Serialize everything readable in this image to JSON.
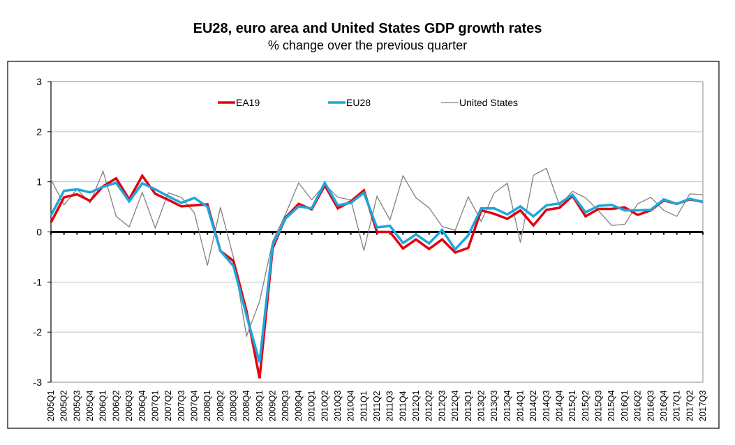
{
  "chart_data": {
    "type": "line",
    "title": "EU28, euro area and United States GDP growth rates",
    "subtitle": "% change over the previous quarter",
    "xlabel": "",
    "ylabel": "",
    "ylim": [
      -3,
      3
    ],
    "yticks": [
      3,
      2,
      1,
      0,
      -1,
      -2,
      -3
    ],
    "grid": true,
    "legend_position": "top",
    "x": [
      "2005Q1",
      "2005Q2",
      "2005Q3",
      "2005Q4",
      "2006Q1",
      "2006Q2",
      "2006Q3",
      "2006Q4",
      "2007Q1",
      "2007Q2",
      "2007Q3",
      "2007Q4",
      "2008Q1",
      "2008Q2",
      "2008Q3",
      "2008Q4",
      "2009Q1",
      "2009Q2",
      "2009Q3",
      "2009Q4",
      "2010Q1",
      "2010Q2",
      "2010Q3",
      "2010Q4",
      "2011Q1",
      "2011Q2",
      "2011Q3",
      "2011Q4",
      "2012Q1",
      "2012Q2",
      "2012Q3",
      "2012Q4",
      "2013Q1",
      "2013Q2",
      "2013Q3",
      "2013Q4",
      "2014Q1",
      "2014Q2",
      "2014Q3",
      "2014Q4",
      "2015Q1",
      "2015Q2",
      "2015Q3",
      "2015Q4",
      "2016Q1",
      "2016Q2",
      "2016Q3",
      "2016Q4",
      "2017Q1",
      "2017Q2",
      "2017Q3"
    ],
    "series": [
      {
        "name": "EA19",
        "color": "#e3000f",
        "values": [
          0.19,
          0.69,
          0.75,
          0.62,
          0.91,
          1.07,
          0.65,
          1.12,
          0.76,
          0.64,
          0.51,
          0.53,
          0.55,
          -0.38,
          -0.58,
          -1.58,
          -2.92,
          -0.33,
          0.29,
          0.56,
          0.45,
          0.93,
          0.47,
          0.61,
          0.83,
          0.0,
          0.0,
          -0.33,
          -0.15,
          -0.34,
          -0.15,
          -0.41,
          -0.32,
          0.43,
          0.36,
          0.26,
          0.43,
          0.13,
          0.44,
          0.48,
          0.72,
          0.31,
          0.46,
          0.46,
          0.49,
          0.34,
          0.43,
          0.63,
          0.56,
          0.65,
          0.6
        ]
      },
      {
        "name": "EU28",
        "color": "#1ea6dc",
        "values": [
          0.33,
          0.82,
          0.85,
          0.79,
          0.9,
          0.98,
          0.61,
          0.97,
          0.85,
          0.71,
          0.58,
          0.68,
          0.5,
          -0.38,
          -0.68,
          -1.67,
          -2.6,
          -0.26,
          0.27,
          0.51,
          0.47,
          0.98,
          0.53,
          0.58,
          0.78,
          0.09,
          0.12,
          -0.22,
          -0.05,
          -0.23,
          0.04,
          -0.35,
          -0.07,
          0.47,
          0.47,
          0.35,
          0.51,
          0.31,
          0.53,
          0.57,
          0.74,
          0.39,
          0.52,
          0.54,
          0.43,
          0.43,
          0.44,
          0.65,
          0.56,
          0.66,
          0.6
        ]
      },
      {
        "name": "United States",
        "color": "#808080",
        "values": [
          1.05,
          0.54,
          0.85,
          0.58,
          1.21,
          0.31,
          0.1,
          0.79,
          0.08,
          0.78,
          0.69,
          0.38,
          -0.67,
          0.49,
          -0.51,
          -2.08,
          -1.39,
          -0.19,
          0.36,
          0.98,
          0.64,
          0.95,
          0.69,
          0.64,
          -0.37,
          0.71,
          0.24,
          1.12,
          0.68,
          0.48,
          0.11,
          0.03,
          0.7,
          0.21,
          0.78,
          0.97,
          -0.21,
          1.13,
          1.27,
          0.53,
          0.81,
          0.68,
          0.42,
          0.13,
          0.15,
          0.56,
          0.69,
          0.43,
          0.31,
          0.76,
          0.74
        ]
      }
    ]
  }
}
